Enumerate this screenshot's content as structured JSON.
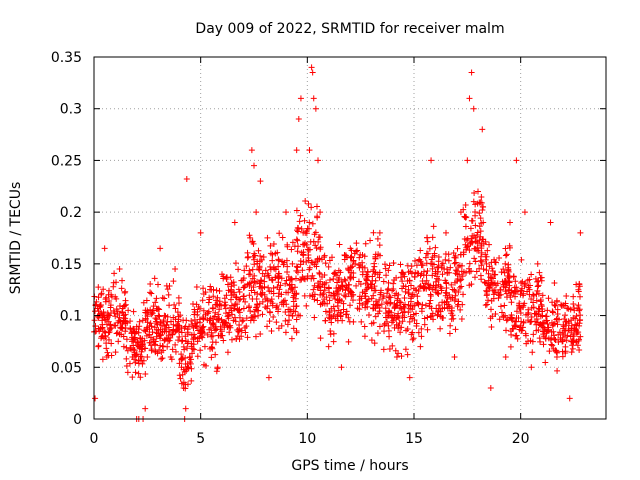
{
  "chart_data": {
    "type": "scatter",
    "title": "Day 009 of 2022, SRMTID for receiver malm",
    "xlabel": "GPS time / hours",
    "ylabel": "SRMTID / TECUs",
    "xlim": [
      0,
      24
    ],
    "ylim": [
      0,
      0.35
    ],
    "x_ticks": [
      0,
      5,
      10,
      15,
      20
    ],
    "x_tick_labels": [
      "0",
      "5",
      "10",
      "15",
      "20"
    ],
    "y_ticks": [
      0,
      0.05,
      0.1,
      0.15,
      0.2,
      0.25,
      0.3,
      0.35
    ],
    "y_tick_labels": [
      "0",
      "0.05",
      "0.1",
      "0.15",
      "0.2",
      "0.25",
      "0.3",
      "0.35"
    ],
    "grid": true,
    "marker": "plus",
    "color": "#ff0000",
    "series": [
      {
        "name": "SRMTID",
        "points": [
          [
            0.05,
            0.02
          ],
          [
            0.1,
            0.085
          ],
          [
            0.2,
            0.07
          ],
          [
            0.3,
            0.11
          ],
          [
            0.4,
            0.08
          ],
          [
            0.5,
            0.165
          ],
          [
            0.6,
            0.06
          ],
          [
            0.8,
            0.12
          ],
          [
            1.0,
            0.09
          ],
          [
            1.2,
            0.145
          ],
          [
            1.4,
            0.07
          ],
          [
            1.6,
            0.105
          ],
          [
            1.8,
            0.06
          ],
          [
            2.0,
            0.0
          ],
          [
            2.1,
            0.0
          ],
          [
            2.3,
            0.0
          ],
          [
            2.4,
            0.01
          ],
          [
            2.5,
            0.06
          ],
          [
            2.6,
            0.09
          ],
          [
            2.8,
            0.075
          ],
          [
            3.0,
            0.13
          ],
          [
            3.1,
            0.165
          ],
          [
            3.3,
            0.1
          ],
          [
            3.5,
            0.12
          ],
          [
            3.6,
            0.06
          ],
          [
            3.8,
            0.145
          ],
          [
            4.0,
            0.09
          ],
          [
            4.1,
            0.05
          ],
          [
            4.2,
            0.03
          ],
          [
            4.25,
            0.0
          ],
          [
            4.3,
            0.01
          ],
          [
            4.35,
            0.232
          ],
          [
            4.5,
            0.06
          ],
          [
            4.8,
            0.09
          ],
          [
            5.0,
            0.18
          ],
          [
            5.2,
            0.07
          ],
          [
            5.5,
            0.125
          ],
          [
            5.8,
            0.05
          ],
          [
            6.0,
            0.14
          ],
          [
            6.3,
            0.1
          ],
          [
            6.6,
            0.19
          ],
          [
            6.9,
            0.08
          ],
          [
            7.2,
            0.13
          ],
          [
            7.4,
            0.26
          ],
          [
            7.5,
            0.245
          ],
          [
            7.6,
            0.2
          ],
          [
            7.8,
            0.23
          ],
          [
            8.0,
            0.12
          ],
          [
            8.2,
            0.04
          ],
          [
            8.5,
            0.16
          ],
          [
            8.8,
            0.09
          ],
          [
            9.0,
            0.2
          ],
          [
            9.3,
            0.15
          ],
          [
            9.5,
            0.26
          ],
          [
            9.6,
            0.29
          ],
          [
            9.7,
            0.31
          ],
          [
            9.9,
            0.18
          ],
          [
            10.1,
            0.26
          ],
          [
            10.2,
            0.34
          ],
          [
            10.25,
            0.335
          ],
          [
            10.3,
            0.31
          ],
          [
            10.4,
            0.3
          ],
          [
            10.5,
            0.25
          ],
          [
            10.7,
            0.12
          ],
          [
            11.0,
            0.07
          ],
          [
            11.3,
            0.14
          ],
          [
            11.6,
            0.05
          ],
          [
            12.0,
            0.11
          ],
          [
            12.3,
            0.17
          ],
          [
            12.7,
            0.08
          ],
          [
            13.0,
            0.13
          ],
          [
            13.4,
            0.18
          ],
          [
            13.8,
            0.09
          ],
          [
            14.2,
            0.06
          ],
          [
            14.5,
            0.14
          ],
          [
            14.8,
            0.04
          ],
          [
            15.0,
            0.12
          ],
          [
            15.3,
            0.07
          ],
          [
            15.6,
            0.16
          ],
          [
            15.8,
            0.25
          ],
          [
            16.1,
            0.1
          ],
          [
            16.5,
            0.18
          ],
          [
            16.9,
            0.06
          ],
          [
            17.2,
            0.2
          ],
          [
            17.5,
            0.25
          ],
          [
            17.6,
            0.31
          ],
          [
            17.7,
            0.335
          ],
          [
            17.8,
            0.3
          ],
          [
            18.0,
            0.22
          ],
          [
            18.2,
            0.28
          ],
          [
            18.4,
            0.15
          ],
          [
            18.6,
            0.03
          ],
          [
            19.0,
            0.12
          ],
          [
            19.3,
            0.06
          ],
          [
            19.5,
            0.19
          ],
          [
            19.8,
            0.25
          ],
          [
            20.0,
            0.09
          ],
          [
            20.2,
            0.2
          ],
          [
            20.5,
            0.05
          ],
          [
            20.8,
            0.15
          ],
          [
            21.1,
            0.08
          ],
          [
            21.4,
            0.19
          ],
          [
            21.7,
            0.06
          ],
          [
            22.0,
            0.11
          ],
          [
            22.3,
            0.02
          ],
          [
            22.6,
            0.13
          ],
          [
            22.8,
            0.18
          ]
        ],
        "bands": [
          [
            0.0,
            1.5,
            0.055,
            0.14
          ],
          [
            1.5,
            2.4,
            0.035,
            0.11
          ],
          [
            2.4,
            4.0,
            0.05,
            0.13
          ],
          [
            4.0,
            4.6,
            0.02,
            0.1
          ],
          [
            4.6,
            6.0,
            0.05,
            0.135
          ],
          [
            6.0,
            7.0,
            0.06,
            0.15
          ],
          [
            7.0,
            8.2,
            0.07,
            0.19
          ],
          [
            8.2,
            9.5,
            0.07,
            0.18
          ],
          [
            9.5,
            10.6,
            0.09,
            0.22
          ],
          [
            10.6,
            12.0,
            0.07,
            0.17
          ],
          [
            12.0,
            13.5,
            0.08,
            0.18
          ],
          [
            13.5,
            15.0,
            0.06,
            0.155
          ],
          [
            15.0,
            16.5,
            0.08,
            0.18
          ],
          [
            16.5,
            17.3,
            0.08,
            0.17
          ],
          [
            17.3,
            18.3,
            0.12,
            0.22
          ],
          [
            18.3,
            19.5,
            0.08,
            0.18
          ],
          [
            19.5,
            21.0,
            0.06,
            0.15
          ],
          [
            21.0,
            22.8,
            0.05,
            0.13
          ]
        ]
      }
    ]
  }
}
